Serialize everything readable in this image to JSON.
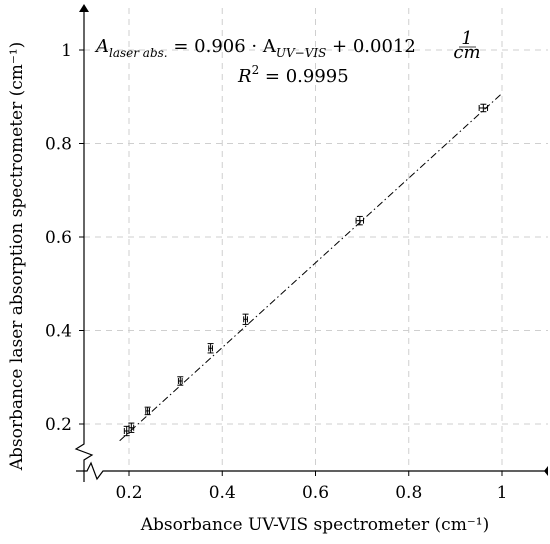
{
  "chart_data": {
    "type": "scatter",
    "title": "",
    "xlabel": "Absorbance UV-VIS spectrometer (cm⁻¹)",
    "ylabel": "Absorbance laser absorption spectrometer (cm⁻¹)",
    "xlim": [
      0.08,
      1.08
    ],
    "ylim": [
      0.08,
      1.1
    ],
    "x_ticks": [
      0.2,
      0.4,
      0.6,
      0.8,
      1.0
    ],
    "x_tick_labels": [
      "0.2",
      "0.4",
      "0.6",
      "0.8",
      "1"
    ],
    "y_ticks": [
      0.2,
      0.4,
      0.6,
      0.8,
      1.0
    ],
    "y_tick_labels": [
      "0.2",
      "0.4",
      "0.6",
      "0.8",
      "1"
    ],
    "grid": true,
    "axis_breaks": true,
    "legend": "none",
    "series": [
      {
        "x": [
          0.195,
          0.205,
          0.24,
          0.31,
          0.375,
          0.45,
          0.695,
          0.96
        ],
        "y": [
          0.185,
          0.192,
          0.228,
          0.292,
          0.362,
          0.424,
          0.635,
          0.876
        ],
        "yerr": [
          0.01,
          0.01,
          0.008,
          0.009,
          0.01,
          0.011,
          0.009,
          0.008
        ],
        "xerr": [
          0.005,
          0.005,
          0.004,
          0.004,
          0.004,
          0.004,
          0.008,
          0.009
        ]
      }
    ],
    "fit_line": {
      "slope": 0.906,
      "intercept": 0.0012,
      "x_range": [
        0.18,
        1.0
      ],
      "style": "dash-dot"
    },
    "annotation": {
      "equation_lhs": "A",
      "equation_lhs_sub": "laser abs.",
      "equation_mid": " = 0.906 · A",
      "equation_mid_sub": "UV−VIS",
      "equation_rhs": " + 0.0012",
      "unit_num": "1",
      "unit_den": "cm",
      "r2_label": "R",
      "r2_exp": "2",
      "r2_value": " = 0.9995"
    }
  }
}
